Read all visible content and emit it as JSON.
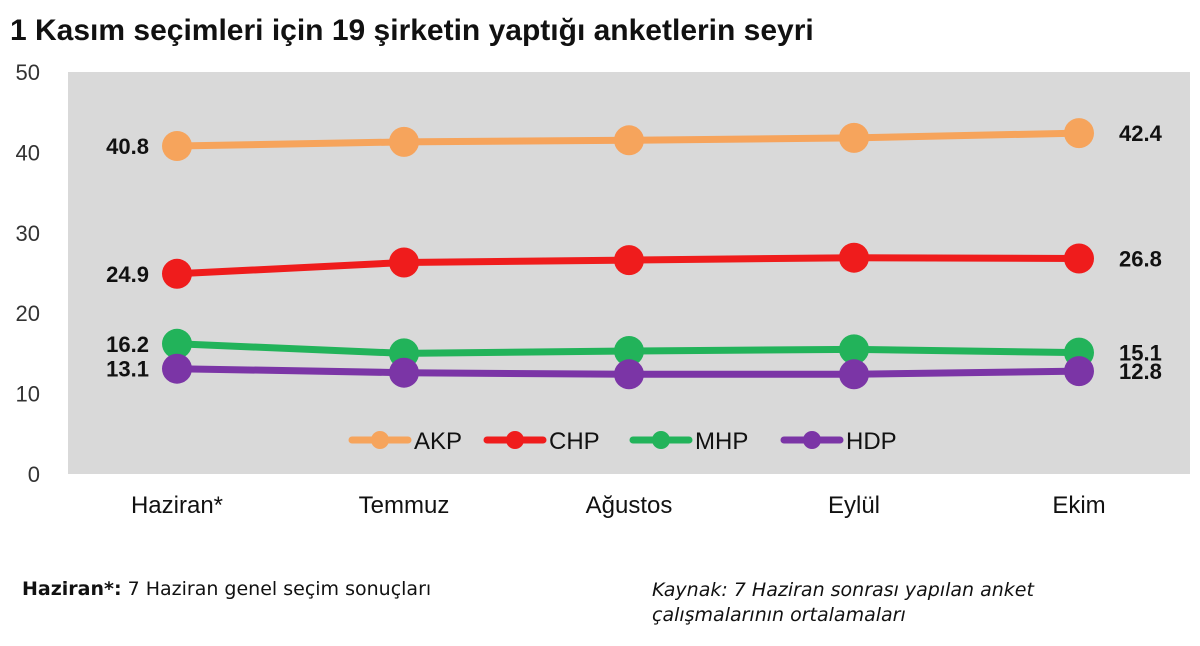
{
  "footnote": {
    "key": "Haziran*:",
    "text": " 7 Haziran genel seçim sonuçları"
  },
  "source": {
    "line1": "Kaynak: 7 Haziran  sonrası yapılan  anket",
    "line2": "çalışmalarının  ortalamaları"
  },
  "chart_data": {
    "type": "line",
    "title": "1 Kasım seçimleri için 19 şirketin yaptığı anketlerin seyri",
    "xlabel": "",
    "ylabel": "",
    "categories": [
      "Haziran*",
      "Temmuz",
      "Ağustos",
      "Eylül",
      "Ekim"
    ],
    "ylim": [
      0,
      50
    ],
    "yticks": [
      0,
      10,
      20,
      30,
      40,
      50
    ],
    "grid": false,
    "legend_position": "bottom-center",
    "plot_background": "#d9d9d9",
    "series": [
      {
        "name": "AKP",
        "color": "#f6a45c",
        "values": [
          40.8,
          41.3,
          41.5,
          41.8,
          42.4
        ],
        "labels": [
          "40.8",
          "",
          "",
          "",
          "42.4"
        ]
      },
      {
        "name": "CHP",
        "color": "#ef1c1c",
        "values": [
          24.9,
          26.3,
          26.6,
          26.9,
          26.8
        ],
        "labels": [
          "24.9",
          "",
          "",
          "",
          "26.8"
        ]
      },
      {
        "name": "MHP",
        "color": "#22b35a",
        "values": [
          16.2,
          15.0,
          15.3,
          15.5,
          15.1
        ],
        "labels": [
          "16.2",
          "",
          "",
          "",
          "15.1"
        ]
      },
      {
        "name": "HDP",
        "color": "#7b35a6",
        "values": [
          13.1,
          12.6,
          12.4,
          12.4,
          12.8
        ],
        "labels": [
          "13.1",
          "",
          "",
          "",
          "12.8"
        ]
      }
    ]
  }
}
